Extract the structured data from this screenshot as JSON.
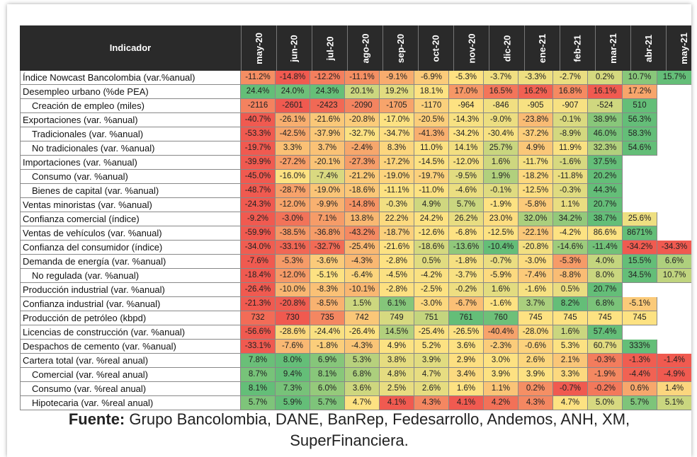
{
  "table": {
    "header": {
      "label": "Indicador",
      "columns": [
        "may-20",
        "jun-20",
        "jul-20",
        "ago-20",
        "sep-20",
        "oct-20",
        "nov-20",
        "dic-20",
        "ene-21",
        "feb-21",
        "mar-21",
        "abr-21",
        "may-21"
      ]
    },
    "rows": [
      {
        "label": "Índice Nowcast Bancolombia (var.%anual)",
        "values": [
          "-11.2%",
          "-14.8%",
          "-12.2%",
          "-11.1%",
          "-9.1%",
          "-6.9%",
          "-5.3%",
          "-3.7%",
          "-3.3%",
          "-2.7%",
          "0.2%",
          "10.7%",
          "15.7%"
        ]
      },
      {
        "label": "Desempleo urbano (%de PEA)",
        "values": [
          "24.4%",
          "24.0%",
          "24.3%",
          "20.1%",
          "19.2%",
          "18.1%",
          "17.0%",
          "16.5%",
          "16.2%",
          "16.8%",
          "16.1%",
          "17.2%"
        ]
      },
      {
        "label": "Creación de empleo (miles)",
        "indent": true,
        "values": [
          "-2116",
          "-2601",
          "-2423",
          "-2090",
          "-1705",
          "-1170",
          "-964",
          "-846",
          "-905",
          "-907",
          "-524",
          "510"
        ]
      },
      {
        "label": "Exportaciones (var. %anual)",
        "values": [
          "-40.7%",
          "-26.1%",
          "-21.6%",
          "-20.8%",
          "-17.0%",
          "-20.5%",
          "-14.3%",
          "-9.0%",
          "-23.8%",
          "-0.1%",
          "38.9%",
          "56.3%"
        ]
      },
      {
        "label": "Tradicionales (var. %anual)",
        "indent": true,
        "values": [
          "-53.3%",
          "-42.5%",
          "-37.9%",
          "-32.7%",
          "-34.7%",
          "-41.3%",
          "-34.2%",
          "-30.4%",
          "-37.2%",
          "-8.9%",
          "46.0%",
          "58.3%"
        ]
      },
      {
        "label": "No tradicionales (var. %anual)",
        "indent": true,
        "values": [
          "-19.7%",
          "3.3%",
          "3.7%",
          "-2.4%",
          "8.3%",
          "11.0%",
          "14.1%",
          "25.7%",
          "4.9%",
          "11.9%",
          "32.3%",
          "54.6%"
        ]
      },
      {
        "label": "Importaciones (var. %anual)",
        "values": [
          "-39.9%",
          "-27.2%",
          "-20.1%",
          "-27.3%",
          "-17.2%",
          "-14.5%",
          "-12.0%",
          "1.6%",
          "-11.7%",
          "-1.6%",
          "37.5%"
        ]
      },
      {
        "label": "Consumo (var. %anual)",
        "indent": true,
        "values": [
          "-45.0%",
          "-16.0%",
          "-7.4%",
          "-21.2%",
          "-19.0%",
          "-19.7%",
          "-9.5%",
          "1.9%",
          "-18.2%",
          "-11.8%",
          "20.2%"
        ]
      },
      {
        "label": "Bienes de capital (var. %anual)",
        "indent": true,
        "values": [
          "-48.7%",
          "-28.7%",
          "-19.0%",
          "-18.6%",
          "-11.1%",
          "-11.0%",
          "-4.6%",
          "-0.1%",
          "-12.5%",
          "-0.3%",
          "44.3%"
        ]
      },
      {
        "label": "Ventas minoristas (var. %anual)",
        "values": [
          "-24.3%",
          "-12.0%",
          "-9.9%",
          "-14.8%",
          "-0.3%",
          "4.9%",
          "5.7%",
          "-1.9%",
          "-5.8%",
          "1.1%",
          "20.7%"
        ]
      },
      {
        "label": "Confianza comercial (índice)",
        "values": [
          "-9.2%",
          "-3.0%",
          "7.1%",
          "13.8%",
          "22.2%",
          "24.2%",
          "26.2%",
          "23.0%",
          "32.0%",
          "34.2%",
          "38.7%",
          "25.6%"
        ]
      },
      {
        "label": "Ventas de vehículos (var. %anual)",
        "values": [
          "-59.9%",
          "-38.5%",
          "-36.8%",
          "-43.2%",
          "-18.7%",
          "-12.6%",
          "-6.8%",
          "-12.5%",
          "-22.1%",
          "-4.2%",
          "86.6%",
          "8671%"
        ]
      },
      {
        "label": "Confianza del consumidor (índice)",
        "values": [
          "-34.0%",
          "-33.1%",
          "-32.7%",
          "-25.4%",
          "-21.6%",
          "-18.6%",
          "-13.6%",
          "-10.4%",
          "-20.8%",
          "-14.6%",
          "-11.4%",
          "-34.2%",
          "-34.3%"
        ]
      },
      {
        "label": "Demanda de energía (var. %anual)",
        "values": [
          "-7.6%",
          "-5.3%",
          "-3.6%",
          "-4.3%",
          "-2.8%",
          "0.5%",
          "-1.8%",
          "-0.7%",
          "-3.0%",
          "-5.3%",
          "4.0%",
          "15.5%",
          "6.6%"
        ]
      },
      {
        "label": "No regulada (var. %anual)",
        "indent": true,
        "values": [
          "-18.4%",
          "-12.0%",
          "-5.1%",
          "-6.4%",
          "-4.5%",
          "-4.2%",
          "-3.7%",
          "-5.9%",
          "-7.4%",
          "-8.8%",
          "8.0%",
          "34.5%",
          "10.7%"
        ]
      },
      {
        "label": "Producción industrial (var. %anual)",
        "values": [
          "-26.4%",
          "-10.0%",
          "-8.3%",
          "-10.1%",
          "-2.8%",
          "-2.5%",
          "-0.2%",
          "1.6%",
          "-1.6%",
          "0.5%",
          "20.7%"
        ]
      },
      {
        "label": "Confianza industrial (var. %anual)",
        "values": [
          "-21.3%",
          "-20.8%",
          "-8.5%",
          "1.5%",
          "6.1%",
          "-3.0%",
          "-6.7%",
          "-1.6%",
          "3.7%",
          "8.2%",
          "6.8%",
          "-5.1%"
        ]
      },
      {
        "label": "Producción de petróleo (kbpd)",
        "values": [
          "732",
          "730",
          "735",
          "742",
          "749",
          "751",
          "761",
          "760",
          "745",
          "745",
          "745",
          "745"
        ]
      },
      {
        "label": "Licencias de construcción (var. %anual)",
        "values": [
          "-56.6%",
          "-28.6%",
          "-24.4%",
          "-26.4%",
          "14.5%",
          "-25.4%",
          "-26.5%",
          "-40.4%",
          "-28.0%",
          "1.6%",
          "57.4%"
        ]
      },
      {
        "label": "Despachos de cemento  (var. %anual)",
        "values": [
          "-33.1%",
          "-7.6%",
          "-1.8%",
          "-4.3%",
          "4.9%",
          "5.2%",
          "3.6%",
          "-2.3%",
          "-0.6%",
          "5.3%",
          "60.7%",
          "333%"
        ]
      },
      {
        "label": "Cartera total (var. %real anual)",
        "values": [
          "7.8%",
          "8.0%",
          "6.9%",
          "5.3%",
          "3.8%",
          "3.9%",
          "2.9%",
          "3.0%",
          "2.6%",
          "2.1%",
          "-0.3%",
          "-1.3%",
          "-1.4%"
        ]
      },
      {
        "label": "Comercial  (var. %real anual)",
        "indent": true,
        "values": [
          "8.7%",
          "9.4%",
          "8.1%",
          "6.8%",
          "4.8%",
          "4.7%",
          "3.4%",
          "3.9%",
          "3.9%",
          "3.3%",
          "-1.9%",
          "-4.4%",
          "-4.9%"
        ]
      },
      {
        "label": "Consumo (var. %real anual)",
        "indent": true,
        "values": [
          "8.1%",
          "7.3%",
          "6.0%",
          "3.6%",
          "2.5%",
          "2.6%",
          "1.6%",
          "1.1%",
          "0.2%",
          "-0.7%",
          "-0.2%",
          "0.6%",
          "1.4%"
        ]
      },
      {
        "label": "Hipotecaria (var. %real anual)",
        "indent": true,
        "values": [
          "5.7%",
          "5.9%",
          "5.7%",
          "4.7%",
          "4.1%",
          "4.3%",
          "4.1%",
          "4.2%",
          "4.3%",
          "4.7%",
          "5.0%",
          "5.7%",
          "5.1%"
        ]
      }
    ]
  },
  "footer": {
    "label": "Fuente:",
    "text": "Grupo Bancolombia, DANE, BanRep, Fedesarrollo, Andemos, ANH, XM, SuperFinanciera."
  }
}
